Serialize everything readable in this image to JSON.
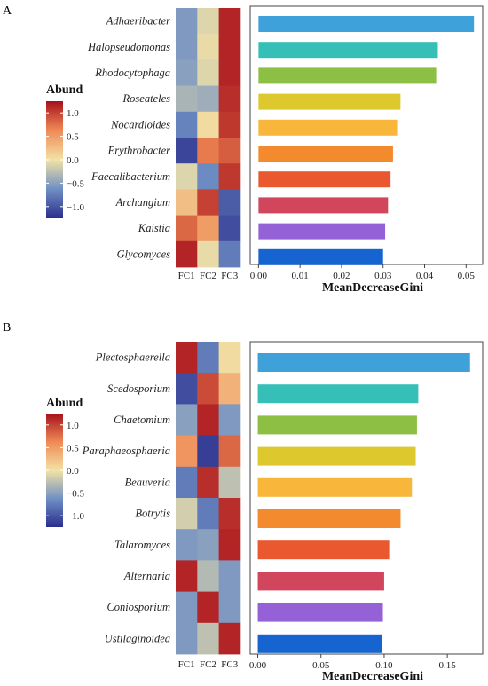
{
  "chart_data": [
    {
      "panel": "A",
      "type": "bar",
      "orientation": "horizontal",
      "xlabel": "MeanDecreaseGini",
      "xlim": [
        -0.002,
        0.054
      ],
      "xticks": [
        0.0,
        0.01,
        0.02,
        0.03,
        0.04,
        0.05
      ],
      "xtick_labels": [
        "0.00",
        "0.01",
        "0.02",
        "0.03",
        "0.04",
        "0.05"
      ],
      "categories": [
        "Adhaeribacter",
        "Halopseudomonas",
        "Rhodocytophaga",
        "Roseateles",
        "Nocardioides",
        "Erythrobacter",
        "Faecalibacterium",
        "Archangium",
        "Kaistia",
        "Glycomyces"
      ],
      "values": [
        0.0519,
        0.0432,
        0.0428,
        0.0342,
        0.0336,
        0.0324,
        0.0318,
        0.0312,
        0.0305,
        0.03
      ],
      "bar_colors": [
        "#3fa1da",
        "#36bfb7",
        "#8dbf45",
        "#ddc92e",
        "#f8b73a",
        "#f48a2e",
        "#ea5830",
        "#d2465d",
        "#9561d6",
        "#1664cf"
      ],
      "heatmap": {
        "columns": [
          "FC1",
          "FC2",
          "FC3"
        ],
        "rows": [
          "Adhaeribacter",
          "Halopseudomonas",
          "Rhodocytophaga",
          "Roseateles",
          "Nocardioides",
          "Erythrobacter",
          "Faecalibacterium",
          "Archangium",
          "Kaistia",
          "Glycomyces"
        ],
        "values": [
          [
            -0.55,
            -0.1,
            1.15
          ],
          [
            -0.55,
            -0.05,
            1.15
          ],
          [
            -0.5,
            -0.1,
            1.15
          ],
          [
            -0.35,
            -0.4,
            1.1
          ],
          [
            -0.7,
            0.05,
            1.05
          ],
          [
            -1.1,
            0.7,
            0.85
          ],
          [
            -0.1,
            -0.65,
            1.05
          ],
          [
            0.25,
            1.0,
            -0.95
          ],
          [
            0.8,
            0.5,
            -1.05
          ],
          [
            1.15,
            -0.05,
            -0.75
          ]
        ]
      },
      "legend": {
        "title": "Abund",
        "ticks": [
          1.0,
          0.5,
          0.0,
          -0.5,
          -1.0
        ],
        "tick_labels": [
          "1.0",
          "0.5",
          "0.0",
          "−0.5",
          "−1.0"
        ],
        "range": [
          -1.25,
          1.25
        ]
      }
    },
    {
      "panel": "B",
      "type": "bar",
      "orientation": "horizontal",
      "xlabel": "MeanDecreaseGini",
      "xlim": [
        -0.006,
        0.178
      ],
      "xticks": [
        0.0,
        0.05,
        0.1,
        0.15
      ],
      "xtick_labels": [
        "0.00",
        "0.05",
        "0.10",
        "0.15"
      ],
      "categories": [
        "Plectosphaerella",
        "Scedosporium",
        "Chaetomium",
        "Paraphaeosphaeria",
        "Beauveria",
        "Botrytis",
        "Talaromyces",
        "Alternaria",
        "Coniosporium",
        "Ustilaginoidea"
      ],
      "values": [
        0.168,
        0.127,
        0.126,
        0.125,
        0.122,
        0.113,
        0.104,
        0.1,
        0.099,
        0.098
      ],
      "bar_colors": [
        "#3fa1da",
        "#36bfb7",
        "#8dbf45",
        "#ddc92e",
        "#f8b73a",
        "#f48a2e",
        "#ea5830",
        "#d2465d",
        "#9561d6",
        "#1664cf"
      ],
      "heatmap": {
        "columns": [
          "FC1",
          "FC2",
          "FC3"
        ],
        "rows": [
          "Plectosphaerella",
          "Scedosporium",
          "Chaetomium",
          "Paraphaeosphaeria",
          "Beauveria",
          "Botrytis",
          "Talaromyces",
          "Alternaria",
          "Coniosporium",
          "Ustilaginoidea"
        ],
        "values": [
          [
            1.15,
            -0.75,
            0.05
          ],
          [
            -1.05,
            0.95,
            0.35
          ],
          [
            -0.5,
            1.15,
            -0.55
          ],
          [
            0.55,
            -1.15,
            0.8
          ],
          [
            -0.75,
            1.1,
            -0.25
          ],
          [
            -0.15,
            -0.75,
            1.1
          ],
          [
            -0.55,
            -0.5,
            1.15
          ],
          [
            1.15,
            -0.3,
            -0.55
          ],
          [
            -0.55,
            1.15,
            -0.55
          ],
          [
            -0.55,
            -0.25,
            1.15
          ]
        ]
      },
      "legend": {
        "title": "Abund",
        "ticks": [
          1.0,
          0.5,
          0.0,
          -0.5,
          -1.0
        ],
        "tick_labels": [
          "1.0",
          "0.5",
          "0.0",
          "−0.5",
          "−1.0"
        ],
        "range": [
          -1.25,
          1.25
        ]
      }
    }
  ]
}
